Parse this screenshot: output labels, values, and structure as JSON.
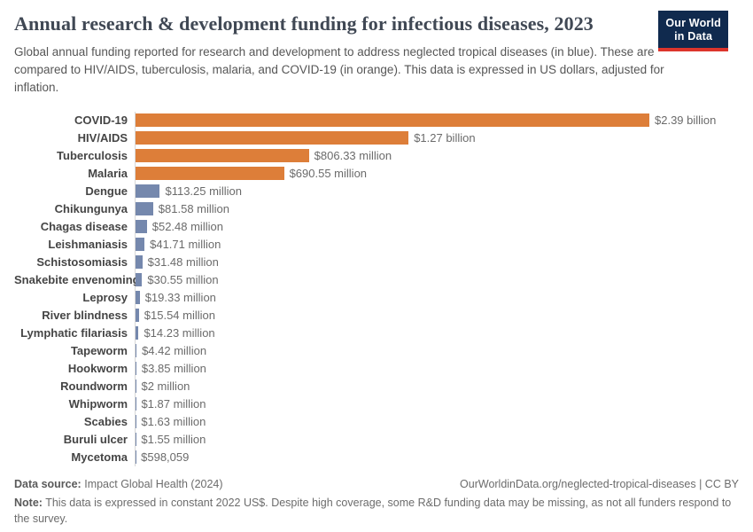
{
  "header": {
    "title": "Annual research & development funding for infectious diseases, 2023",
    "subtitle": "Global annual funding reported for research and development to address neglected tropical diseases (in blue). These are compared to HIV/AIDS, tuberculosis, malaria, and COVID-19 (in orange). This data is expressed in US dollars, adjusted for inflation.",
    "logo": {
      "line1": "Our World",
      "line2": "in Data",
      "bg_color": "#102a4e",
      "accent_color": "#dc352c"
    }
  },
  "chart_data": {
    "type": "bar",
    "orientation": "horizontal",
    "title": "Annual research & development funding for infectious diseases, 2023",
    "unit": "US dollars, adjusted for inflation (constant 2022 US$)",
    "xlim_millions": [
      0,
      2390
    ],
    "grid": false,
    "legend": "none",
    "categories": [
      "COVID-19",
      "HIV/AIDS",
      "Tuberculosis",
      "Malaria",
      "Dengue",
      "Chikungunya",
      "Chagas disease",
      "Leishmaniasis",
      "Schistosomiasis",
      "Snakebite envenoming",
      "Leprosy",
      "River blindness",
      "Lymphatic filariasis",
      "Tapeworm",
      "Hookworm",
      "Roundworm",
      "Whipworm",
      "Scabies",
      "Buruli ulcer",
      "Mycetoma"
    ],
    "values_millions": [
      2390,
      1270,
      806.33,
      690.55,
      113.25,
      81.58,
      52.48,
      41.71,
      31.48,
      30.55,
      19.33,
      15.54,
      14.23,
      4.42,
      3.85,
      2,
      1.87,
      1.63,
      1.55,
      0.598059
    ],
    "value_labels": [
      "$2.39 billion",
      "$1.27 billion",
      "$806.33 million",
      "$690.55 million",
      "$113.25 million",
      "$81.58 million",
      "$52.48 million",
      "$41.71 million",
      "$31.48 million",
      "$30.55 million",
      "$19.33 million",
      "$15.54 million",
      "$14.23 million",
      "$4.42 million",
      "$3.85 million",
      "$2 million",
      "$1.87 million",
      "$1.63 million",
      "$1.55 million",
      "$598,059"
    ],
    "bar_color_keys": [
      "orange",
      "orange",
      "orange",
      "orange",
      "blue",
      "blue",
      "blue",
      "blue",
      "blue",
      "blue",
      "blue",
      "blue",
      "blue",
      "blue",
      "blue",
      "blue",
      "blue",
      "blue",
      "blue",
      "blue"
    ],
    "colors": {
      "orange": "#dd7e39",
      "blue": "#7588ad"
    }
  },
  "footer": {
    "source_label": "Data source:",
    "source_value": "Impact Global Health (2024)",
    "url_text": "OurWorldinData.org/neglected-tropical-diseases | CC BY",
    "note_label": "Note:",
    "note_text": "This data is expressed in constant 2022 US$. Despite high coverage, some R&D funding data may be missing, as not all funders respond to the survey."
  }
}
